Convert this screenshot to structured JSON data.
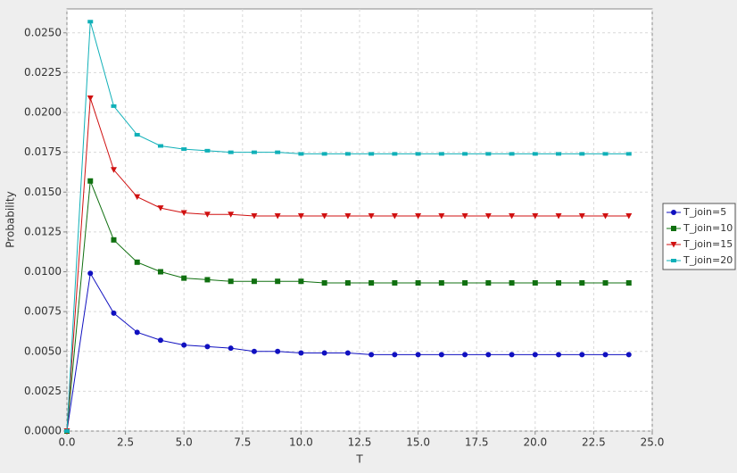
{
  "chart_data": {
    "type": "line",
    "x_label": "T",
    "y_label": "Probability",
    "x": [
      0,
      1,
      2,
      3,
      4,
      5,
      6,
      7,
      8,
      9,
      10,
      11,
      12,
      13,
      14,
      15,
      16,
      17,
      18,
      19,
      20,
      21,
      22,
      23,
      24
    ],
    "series": [
      {
        "name": "T_join=5",
        "color": "#1010c0",
        "marker": "circle",
        "values": [
          0,
          0.0099,
          0.0074,
          0.0062,
          0.0057,
          0.0054,
          0.0053,
          0.0052,
          0.005,
          0.005,
          0.0049,
          0.0049,
          0.0049,
          0.0048,
          0.0048,
          0.0048,
          0.0048,
          0.0048,
          0.0048,
          0.0048,
          0.0048,
          0.0048,
          0.0048,
          0.0048,
          0.0048
        ]
      },
      {
        "name": "T_join=10",
        "color": "#107010",
        "marker": "square",
        "values": [
          0,
          0.0157,
          0.012,
          0.0106,
          0.01,
          0.0096,
          0.0095,
          0.0094,
          0.0094,
          0.0094,
          0.0094,
          0.0093,
          0.0093,
          0.0093,
          0.0093,
          0.0093,
          0.0093,
          0.0093,
          0.0093,
          0.0093,
          0.0093,
          0.0093,
          0.0093,
          0.0093,
          0.0093
        ]
      },
      {
        "name": "T_join=15",
        "color": "#d01010",
        "marker": "triangle-down",
        "values": [
          0,
          0.0209,
          0.0164,
          0.0147,
          0.014,
          0.0137,
          0.0136,
          0.0136,
          0.0135,
          0.0135,
          0.0135,
          0.0135,
          0.0135,
          0.0135,
          0.0135,
          0.0135,
          0.0135,
          0.0135,
          0.0135,
          0.0135,
          0.0135,
          0.0135,
          0.0135,
          0.0135,
          0.0135
        ]
      },
      {
        "name": "T_join=20",
        "color": "#10b0b8",
        "marker": "small-square",
        "values": [
          0,
          0.0257,
          0.0204,
          0.0186,
          0.0179,
          0.0177,
          0.0176,
          0.0175,
          0.0175,
          0.0175,
          0.0174,
          0.0174,
          0.0174,
          0.0174,
          0.0174,
          0.0174,
          0.0174,
          0.0174,
          0.0174,
          0.0174,
          0.0174,
          0.0174,
          0.0174,
          0.0174,
          0.0174
        ]
      }
    ],
    "xlim": [
      0,
      25
    ],
    "xticks": [
      {
        "value": 0,
        "label": "0.0"
      },
      2.5,
      {
        "value": 5,
        "label": "5.0"
      },
      7.5,
      {
        "value": 10,
        "label": "10.0"
      },
      12.5,
      {
        "value": 15,
        "label": "15.0"
      },
      17.5,
      {
        "value": 20,
        "label": "20.0"
      },
      22.5,
      {
        "value": 25,
        "label": "25.0"
      }
    ],
    "ylim": [
      0,
      0.0265
    ],
    "yticks": [
      {
        "value": 0,
        "label": "0.0000"
      },
      {
        "value": 0.0025,
        "label": "0.0025"
      },
      {
        "value": 0.005,
        "label": "0.0050"
      },
      {
        "value": 0.0075,
        "label": "0.0075"
      },
      {
        "value": 0.01,
        "label": "0.0100"
      },
      {
        "value": 0.0125,
        "label": "0.0125"
      },
      {
        "value": 0.015,
        "label": "0.0150"
      },
      {
        "value": 0.0175,
        "label": "0.0175"
      },
      {
        "value": 0.02,
        "label": "0.0200"
      },
      {
        "value": 0.0225,
        "label": "0.0225"
      },
      {
        "value": 0.025,
        "label": "0.0250"
      }
    ],
    "grid": true,
    "legend": "right"
  }
}
